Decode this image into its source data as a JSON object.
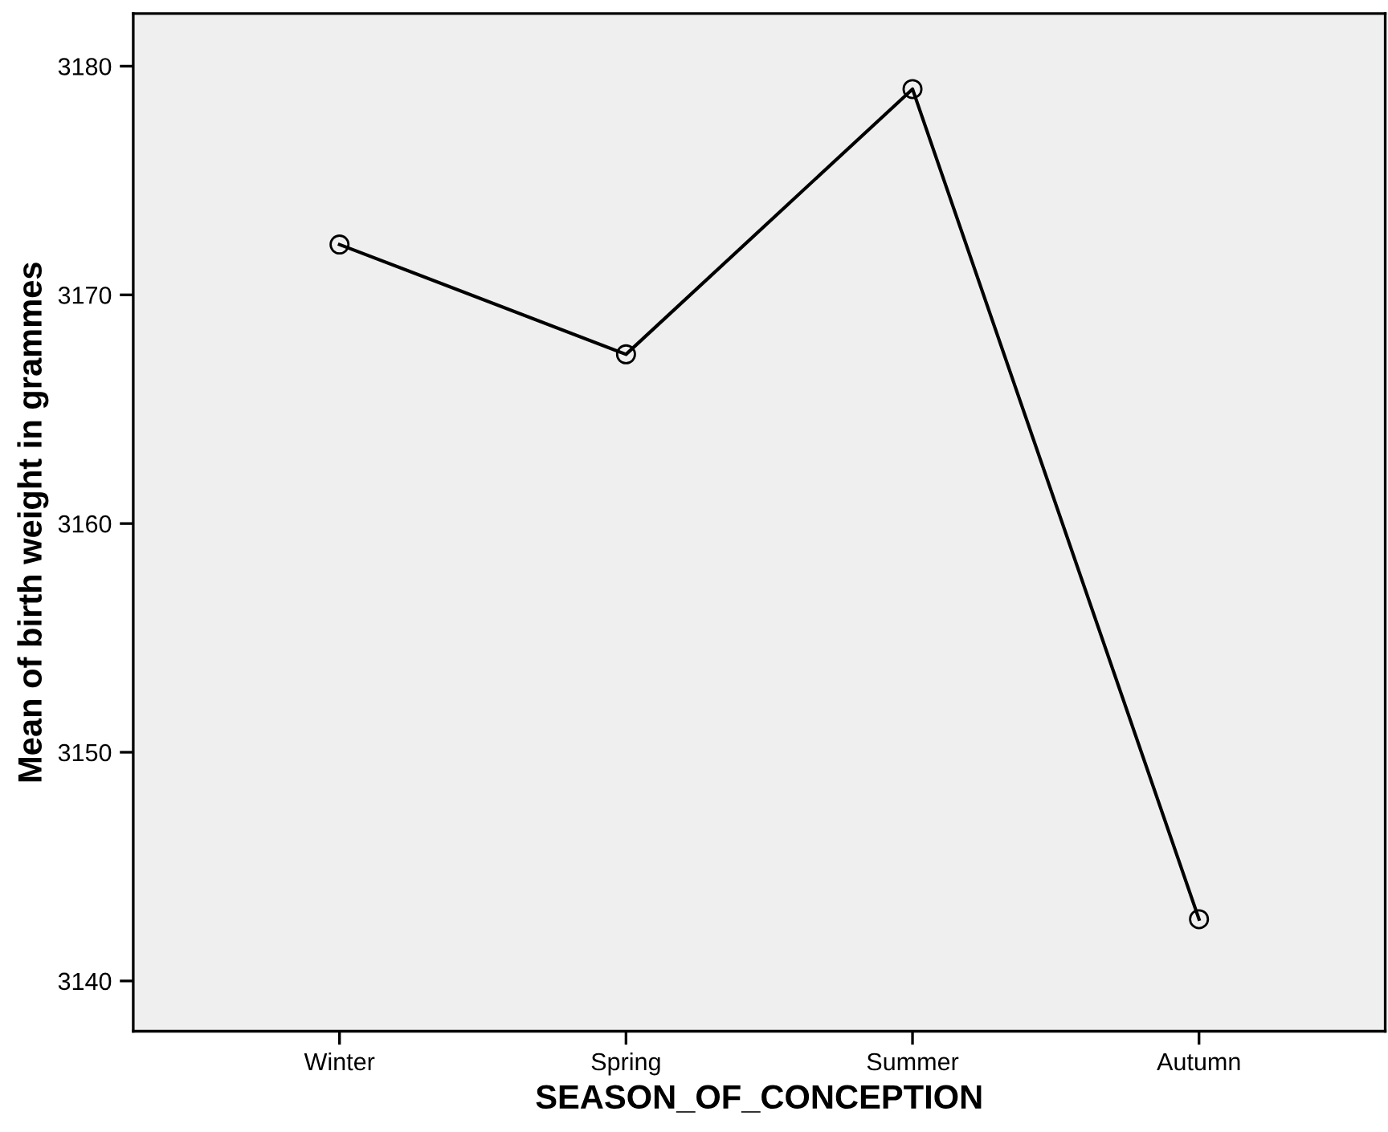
{
  "chart_data": {
    "type": "line",
    "xlabel": "SEASON_OF_CONCEPTION",
    "ylabel": "Mean of birth weight in grammes",
    "categories": [
      "Winter",
      "Spring",
      "Summer",
      "Autumn"
    ],
    "series": [
      {
        "color": "#000000",
        "values": [
          3172.2,
          3167.4,
          3179.0,
          3142.7
        ]
      }
    ],
    "ylim": [
      3137.8,
      3182.3
    ],
    "yticks": [
      3140,
      3150,
      3160,
      3170,
      3180
    ],
    "marker": "circle",
    "line_style": "solid",
    "grid": false,
    "legend": false
  }
}
